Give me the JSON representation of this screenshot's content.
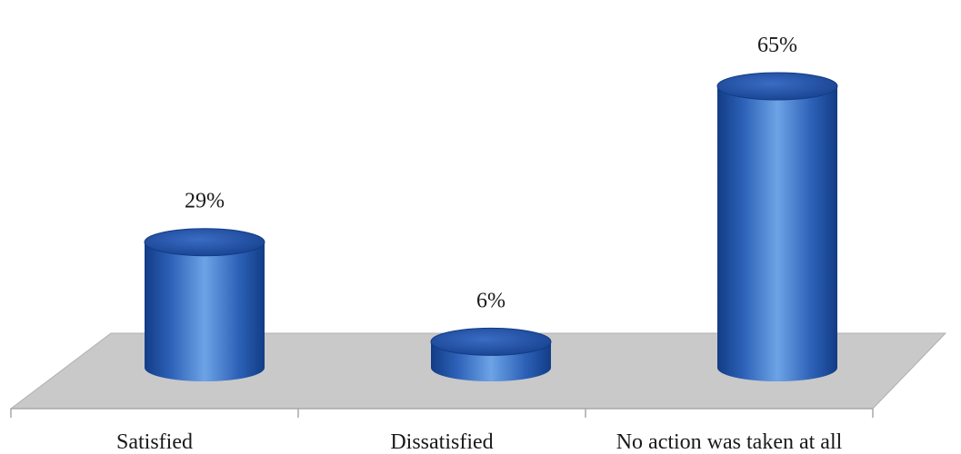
{
  "chart_data": {
    "type": "bar",
    "style": "3d-cylinder",
    "categories": [
      "Satisfied",
      "Dissatisfied",
      "No action was taken at all"
    ],
    "values": [
      29,
      6,
      65
    ],
    "data_labels": [
      "29%",
      "6%",
      "65%"
    ],
    "ylim": [
      0,
      65
    ],
    "grid": false,
    "legend": "none",
    "colors": {
      "bar_body": "#2d62b8",
      "bar_light": "#6da3e6",
      "bar_dark": "#123c86",
      "bar_top": "#1f4fa6",
      "floor": "#c9c9c9",
      "floor_edge": "#a8a8a8",
      "axis": "#b5b5b5"
    }
  }
}
